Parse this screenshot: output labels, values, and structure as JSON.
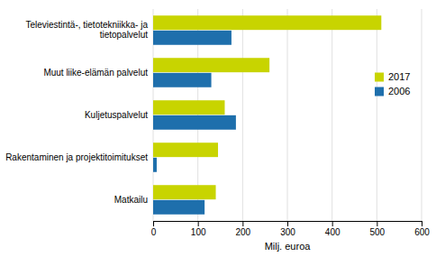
{
  "chart_data": {
    "type": "bar",
    "orientation": "horizontal",
    "categories": [
      "Matkailu",
      "Rakentaminen ja projektitoimitukset",
      "Kuljetuspalvelut",
      "Muut liike-elämän palvelut",
      "Televiestintä-, tietotekniikka- ja\ntietopalvelut"
    ],
    "series": [
      {
        "name": "2017",
        "color": "#c8d400",
        "values": [
          140,
          145,
          160,
          260,
          510
        ]
      },
      {
        "name": "2006",
        "color": "#1e6fac",
        "values": [
          115,
          8,
          185,
          130,
          175
        ]
      }
    ],
    "xlabel": "Milj. euroa",
    "xlim": [
      0,
      600
    ],
    "xticks": [
      0,
      100,
      200,
      300,
      400,
      500,
      600
    ],
    "grid": true,
    "legend": "right"
  }
}
